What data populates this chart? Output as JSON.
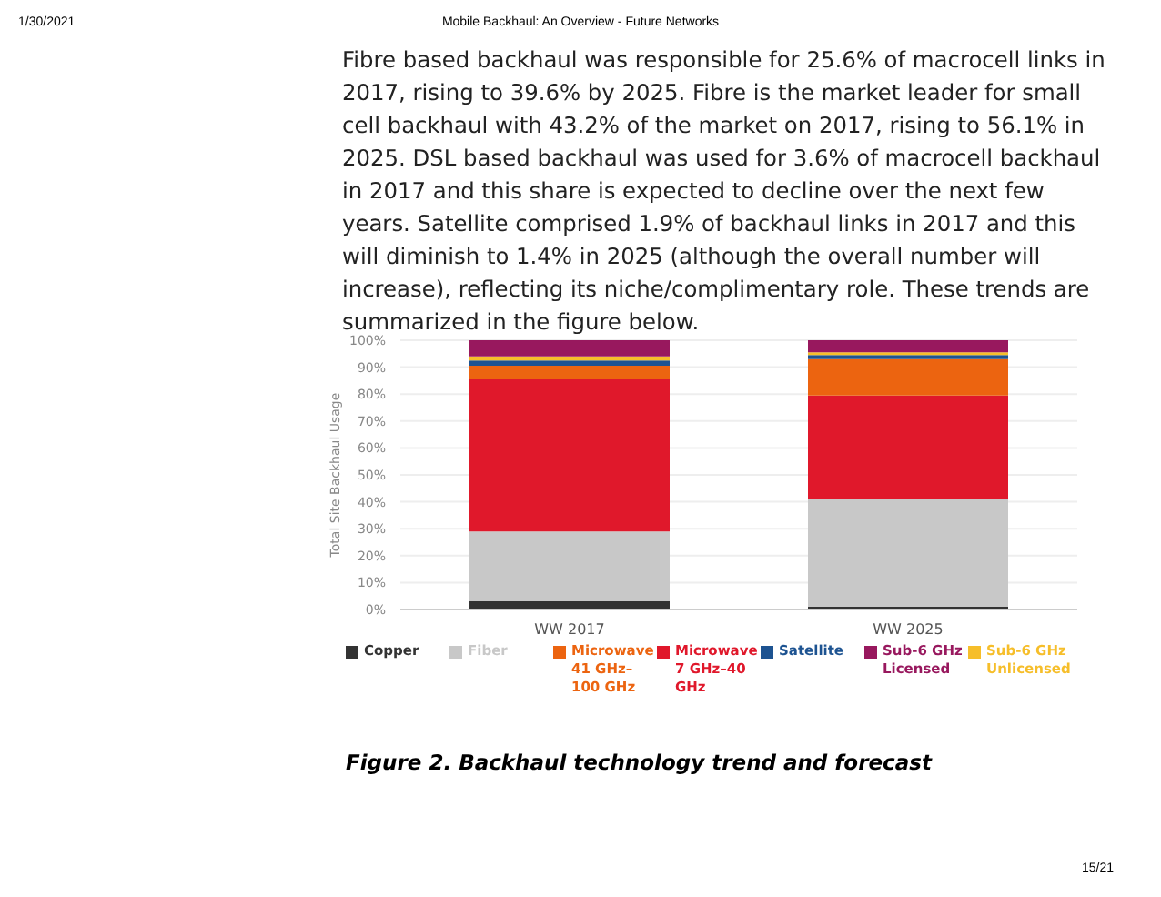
{
  "chart_data": {
    "type": "bar",
    "stacked": true,
    "ylabel": "Total Site Backhaul Usage",
    "categories": [
      "WW 2017",
      "WW 2025"
    ],
    "series": [
      {
        "name": "Copper",
        "color": "#333333",
        "values": [
          3,
          1
        ]
      },
      {
        "name": "Fiber",
        "color": "#c8c8c8",
        "values": [
          26,
          40
        ]
      },
      {
        "name": "Microwave 7 GHz–40 GHz",
        "color": "#e0182b",
        "values": [
          56.5,
          38.5
        ]
      },
      {
        "name": "Microwave 41 GHz–100 GHz",
        "color": "#ec6410",
        "values": [
          5,
          13.5
        ]
      },
      {
        "name": "Satellite",
        "color": "#1d5391",
        "values": [
          2,
          1.5
        ]
      },
      {
        "name": "Sub-6 GHz Unlicensed",
        "color": "#f6be2a",
        "values": [
          1.5,
          1
        ]
      },
      {
        "name": "Sub-6 GHz Licensed",
        "color": "#98185e",
        "values": [
          6,
          4.5
        ]
      }
    ],
    "ylim": [
      0,
      100
    ],
    "yticks": [
      {
        "value": 0,
        "label": "0%"
      },
      {
        "value": 10,
        "label": "10%"
      },
      {
        "value": 20,
        "label": "20%"
      },
      {
        "value": 30,
        "label": "30%"
      },
      {
        "value": 40,
        "label": "40%"
      },
      {
        "value": 50,
        "label": "50%"
      },
      {
        "value": 60,
        "label": "60%"
      },
      {
        "value": 70,
        "label": "70%"
      },
      {
        "value": 80,
        "label": "80%"
      },
      {
        "value": 90,
        "label": "90%"
      },
      {
        "value": 100,
        "label": "100%"
      }
    ],
    "grid": "y",
    "legend": "bottom",
    "annotations": [
      "1/30/2021",
      "Mobile Backhaul: An Overview - Future Networks",
      "Fibre based backhaul was responsible for 25.6% of macrocell links in 2017, rising to 39.6% by 2025. Fibre is the market leader for small cell backhaul with 43.2% of the market on 2017, rising to 56.1% in 2025. DSL based backhaul was used for 3.6% of macrocell backhaul in 2017 and this share is expected to decline over the next few years. Satellite comprised 1.9% of backhaul links in 2017 and this will diminish to 1.4% in 2025 (although the overall number will increase), reflecting its niche/complimentary role. These trends are summarized in the figure below.",
      "Figure 2. Backhaul technology trend and forecast",
      "15/21"
    ]
  }
}
